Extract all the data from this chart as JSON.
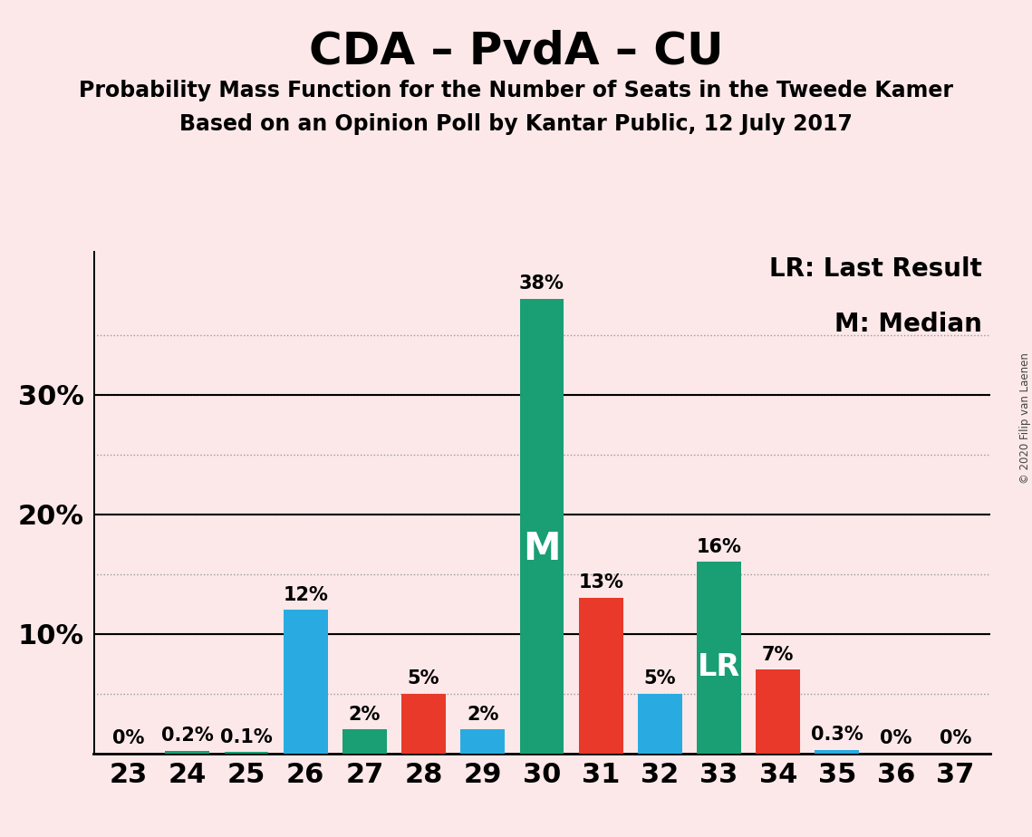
{
  "title": "CDA – PvdA – CU",
  "subtitle1": "Probability Mass Function for the Number of Seats in the Tweede Kamer",
  "subtitle2": "Based on an Opinion Poll by Kantar Public, 12 July 2017",
  "copyright": "© 2020 Filip van Laenen",
  "seats": [
    23,
    24,
    25,
    26,
    27,
    28,
    29,
    30,
    31,
    32,
    33,
    34,
    35,
    36,
    37
  ],
  "values": [
    0.0,
    0.2,
    0.1,
    12.0,
    2.0,
    5.0,
    2.0,
    38.0,
    13.0,
    5.0,
    16.0,
    7.0,
    0.3,
    0.0,
    0.0
  ],
  "colors": [
    "#1a9e74",
    "#1a9e74",
    "#1a9e74",
    "#29abe2",
    "#1a9e74",
    "#e8392a",
    "#29abe2",
    "#1a9e74",
    "#e8392a",
    "#29abe2",
    "#1a9e74",
    "#e8392a",
    "#29abe2",
    "#1a9e74",
    "#1a9e74"
  ],
  "bar_labels": [
    "0%",
    "0.2%",
    "0.1%",
    "12%",
    "2%",
    "5%",
    "2%",
    "38%",
    "13%",
    "5%",
    "16%",
    "7%",
    "0.3%",
    "0%",
    "0%"
  ],
  "median_seat": 30,
  "last_result_seat": 33,
  "ylim": [
    0,
    42
  ],
  "yticks_major": [
    10,
    20,
    30
  ],
  "ytick_major_labels": [
    "10%",
    "20%",
    "30%"
  ],
  "yticks_minor": [
    5,
    10,
    15,
    20,
    25,
    30,
    35
  ],
  "background_color": "#fce8e8",
  "bar_teal": "#1a9e74",
  "bar_blue": "#29abe2",
  "bar_red": "#e8392a",
  "grid_color": "#999999",
  "axis_color": "#000000",
  "title_fontsize": 36,
  "subtitle_fontsize": 17,
  "label_fontsize": 15,
  "tick_fontsize": 22,
  "legend_fontsize": 20,
  "median_label_fontsize": 30,
  "lr_label_fontsize": 24
}
